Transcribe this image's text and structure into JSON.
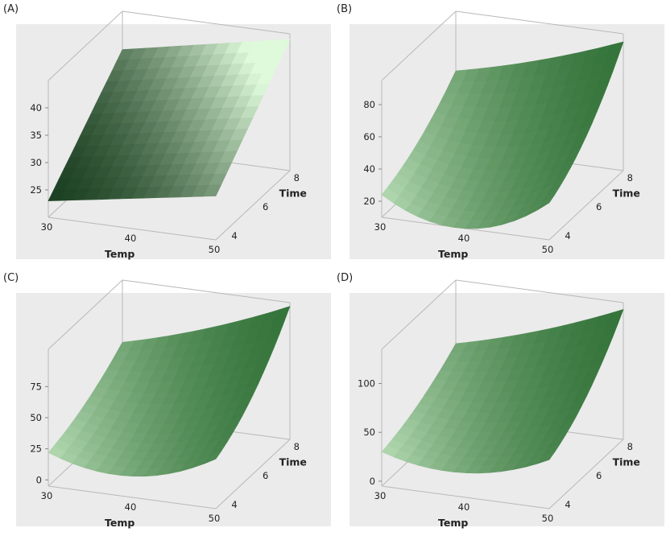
{
  "colors": {
    "plot_bg": "#ebebeb",
    "box_line": "#b8b8b8",
    "surface_light": "#d8f4d4",
    "surface_mid": "#4c9a4c",
    "surface_dark": "#163a1a"
  },
  "chart_data": [
    {
      "type": "surface3d",
      "panel_label": "(A)",
      "xlabel": "Temp",
      "ylabel": "Time",
      "zlabel": "",
      "xticks": [
        "30",
        "40",
        "50"
      ],
      "yticks": [
        "4",
        "6",
        "8"
      ],
      "zticks": [
        "25",
        "30",
        "35",
        "40"
      ],
      "xlim": [
        30,
        50
      ],
      "ylim": [
        3.5,
        8.5
      ],
      "zlim": [
        20,
        45
      ],
      "surface": {
        "model": "planar",
        "z_at": {
          "t30_time4": 23,
          "t50_time4": 28,
          "t30_time8": 38,
          "t50_time8": 44
        }
      }
    },
    {
      "type": "surface3d",
      "panel_label": "(B)",
      "xlabel": "Temp",
      "ylabel": "Time",
      "zlabel": "",
      "xticks": [
        "30",
        "40",
        "50"
      ],
      "yticks": [
        "4",
        "6",
        "8"
      ],
      "zticks": [
        "20",
        "40",
        "60",
        "80"
      ],
      "xlim": [
        30,
        50
      ],
      "ylim": [
        3.5,
        8.5
      ],
      "zlim": [
        10,
        95
      ],
      "surface": {
        "model": "quadratic",
        "z_at": {
          "t30_time4": 24,
          "t50_time4": 33,
          "t30_time8": 58,
          "t50_time8": 90,
          "t40_time4": 10
        }
      }
    },
    {
      "type": "surface3d",
      "panel_label": "(C)",
      "xlabel": "Temp",
      "ylabel": "Time",
      "zlabel": "",
      "xticks": [
        "30",
        "40",
        "50"
      ],
      "yticks": [
        "4",
        "6",
        "8"
      ],
      "zticks": [
        "0",
        "25",
        "50",
        "75"
      ],
      "xlim": [
        30,
        50
      ],
      "ylim": [
        3.5,
        8.5
      ],
      "zlim": [
        -5,
        105
      ],
      "surface": {
        "model": "quadratic",
        "z_at": {
          "t30_time4": 22,
          "t50_time4": 35,
          "t30_time8": 55,
          "t50_time8": 102,
          "t40_time4": 12
        }
      }
    },
    {
      "type": "surface3d",
      "panel_label": "(D)",
      "xlabel": "Temp",
      "ylabel": "Time",
      "zlabel": "",
      "xticks": [
        "30",
        "40",
        "50"
      ],
      "yticks": [
        "4",
        "6",
        "8"
      ],
      "zticks": [
        "0",
        "50",
        "100"
      ],
      "xlim": [
        30,
        50
      ],
      "ylim": [
        3.5,
        8.5
      ],
      "zlim": [
        -5,
        135
      ],
      "surface": {
        "model": "quadratic",
        "z_at": {
          "t30_time4": 30,
          "t50_time4": 45,
          "t30_time8": 70,
          "t50_time8": 128,
          "t40_time4": 20
        }
      }
    }
  ]
}
